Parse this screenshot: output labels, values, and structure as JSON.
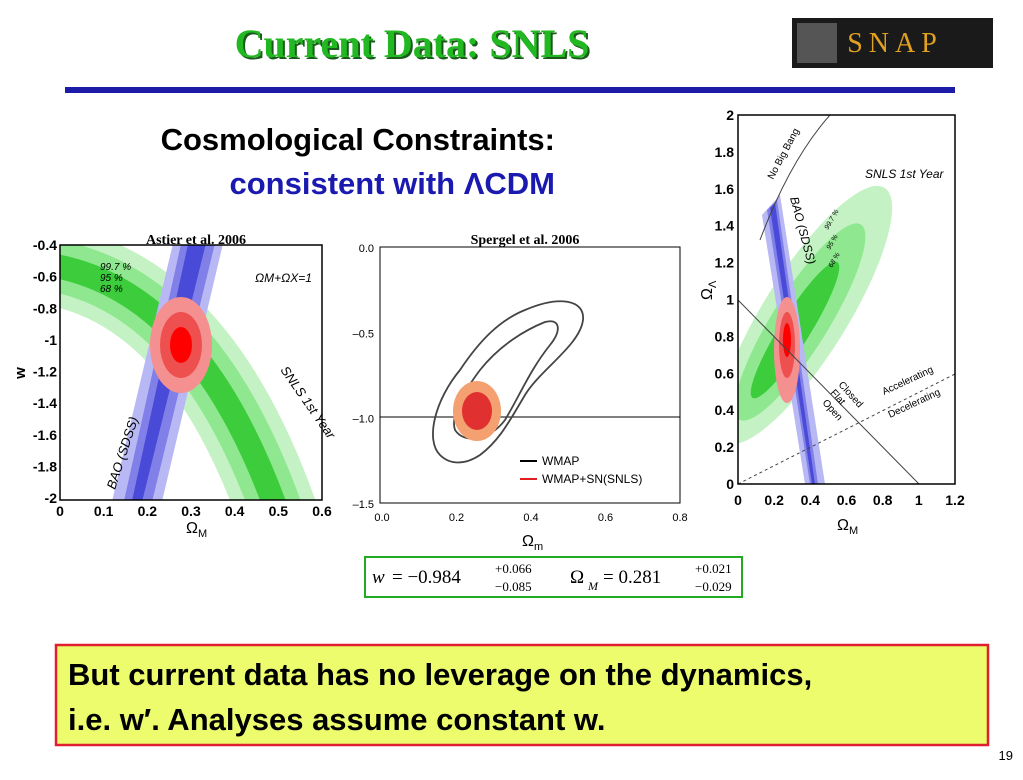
{
  "header": {
    "title": "Current Data: SNLS",
    "logo": "SNAP"
  },
  "subtitle": {
    "line1": "Cosmological Constraints:",
    "line2": "consistent with ΛCDM"
  },
  "left_plot": {
    "citation": "Astier et al. 2006",
    "yticks": [
      "-0.4",
      "-0.6",
      "-0.8",
      "-1",
      "-1.2",
      "-1.4",
      "-1.6",
      "-1.8",
      "-2"
    ],
    "xticks": [
      "0",
      "0.1",
      "0.2",
      "0.3",
      "0.4",
      "0.5",
      "0.6"
    ],
    "ylabel": "w",
    "xlabel": {
      "symbol": "Ω",
      "subscript": "M"
    },
    "annotations": {
      "flat": "ΩM+ΩX=1",
      "snls": "SNLS 1st Year",
      "bao": "BAO (SDSS)",
      "c997": "99.7 %",
      "c95": "95 %",
      "c68": "68 %"
    }
  },
  "middle_plot": {
    "citation": "Spergel et al. 2006",
    "yticks": [
      "0.0",
      "–0.5",
      "–1.0",
      "–1.5"
    ],
    "xticks": [
      "0.0",
      "0.2",
      "0.4",
      "0.6",
      "0.8"
    ],
    "xlabel": {
      "symbol": "Ω",
      "subscript": "m"
    },
    "legend": [
      "WMAP",
      "WMAP+SN(SNLS)"
    ]
  },
  "right_plot": {
    "yticks": [
      "2",
      "1.8",
      "1.6",
      "1.4",
      "1.2",
      "1",
      "0.8",
      "0.6",
      "0.4",
      "0.2",
      "0"
    ],
    "xticks": [
      "0",
      "0.2",
      "0.4",
      "0.6",
      "0.8",
      "1",
      "1.2"
    ],
    "ylabel": {
      "symbol": "Ω",
      "subscript": "Λ"
    },
    "xlabel": {
      "symbol": "Ω",
      "subscript": "M"
    },
    "annotations": {
      "no_big_bang": "No Big Bang",
      "snls": "SNLS 1st Year",
      "bao": "BAO (SDSS)",
      "c997": "99.7 %",
      "c95": "95 %",
      "c68": "68 %",
      "closed": "Closed",
      "flat": "Flat",
      "open": "Open",
      "accelerating": "Accelerating",
      "decelerating": "Decelerating"
    }
  },
  "formula": {
    "w_label": "w",
    "w_value": "= −0.984",
    "w_sup": "+0.066",
    "w_sub": "−0.085",
    "om_label": "Ω",
    "om_index": "M",
    "om_value": "= 0.281",
    "om_sup": "+0.021",
    "om_sub": "−0.029"
  },
  "callout": {
    "line1": "But current data has no leverage on the dynamics,",
    "line2": "i.e. w′.  Analyses assume constant w."
  },
  "page_number": "19"
}
